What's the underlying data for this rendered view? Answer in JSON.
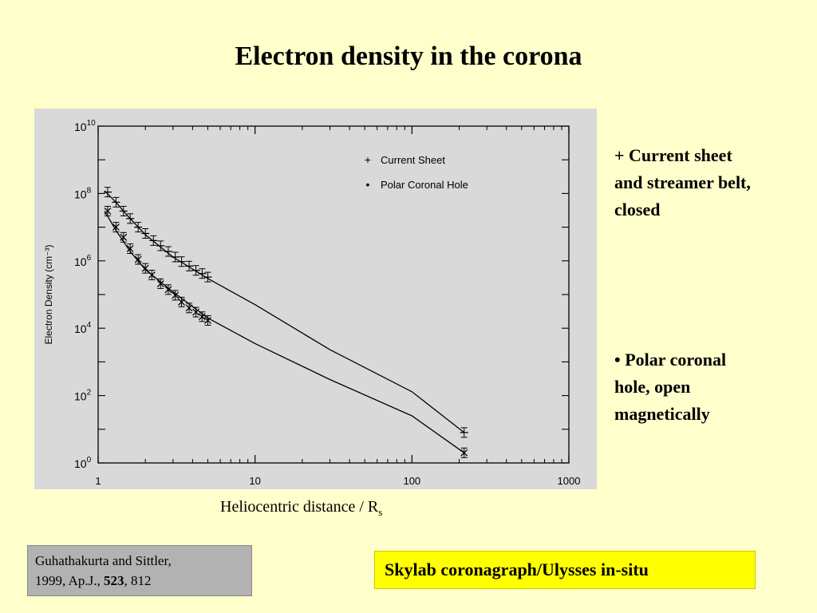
{
  "slide": {
    "title": "Electron density in the corona",
    "notes": [
      "+ Current sheet and streamer belt, closed",
      "• Polar coronal hole, open magnetically"
    ],
    "caption_main": "Heliocentric distance / R",
    "caption_sub": "s",
    "reference": {
      "authors": "Guhathakurta and Sittler,",
      "year_journal": "1999, Ap.J., ",
      "volume": "523",
      "pages": ", 812"
    },
    "skylab_label": "Skylab coronagraph/Ulysses in-situ"
  },
  "chart_data": {
    "type": "line",
    "title": "",
    "xlabel": "",
    "ylabel": "Electron Density (cm⁻³)",
    "xscale": "log",
    "yscale": "log",
    "xlim": [
      1,
      1000
    ],
    "ylim": [
      1,
      10000000000
    ],
    "grid": false,
    "legend_position": "top-right",
    "x_ticks": [
      {
        "value": 1,
        "label": "1"
      },
      {
        "value": 10,
        "label": "10"
      },
      {
        "value": 100,
        "label": "100"
      },
      {
        "value": 1000,
        "label": "1000"
      }
    ],
    "y_ticks": [
      {
        "value": 1,
        "base": "10",
        "exp": "0"
      },
      {
        "value": 100,
        "base": "10",
        "exp": "2"
      },
      {
        "value": 10000,
        "base": "10",
        "exp": "4"
      },
      {
        "value": 1000000,
        "base": "10",
        "exp": "6"
      },
      {
        "value": 100000000,
        "base": "10",
        "exp": "8"
      },
      {
        "value": 10000000000,
        "base": "10",
        "exp": "10"
      }
    ],
    "series": [
      {
        "name": "Current Sheet",
        "marker": "+",
        "curve": [
          [
            1.1,
            120000000
          ],
          [
            1.3,
            55000000
          ],
          [
            1.5,
            25000000
          ],
          [
            2,
            6000000
          ],
          [
            3,
            1300000
          ],
          [
            5,
            300000
          ],
          [
            10,
            50000
          ],
          [
            30,
            2300
          ],
          [
            100,
            130
          ],
          [
            215,
            8
          ]
        ],
        "points": [
          [
            1.15,
            110000000
          ],
          [
            1.3,
            55000000
          ],
          [
            1.45,
            30000000
          ],
          [
            1.6,
            18000000
          ],
          [
            1.8,
            10000000
          ],
          [
            2,
            6500000
          ],
          [
            2.25,
            4000000
          ],
          [
            2.5,
            2800000
          ],
          [
            2.8,
            1900000
          ],
          [
            3.1,
            1300000
          ],
          [
            3.4,
            950000
          ],
          [
            3.8,
            700000
          ],
          [
            4.2,
            520000
          ],
          [
            4.6,
            420000
          ],
          [
            5,
            330000
          ],
          [
            215,
            8
          ]
        ]
      },
      {
        "name": "Polar Coronal Hole",
        "marker": "*",
        "curve": [
          [
            1.1,
            30000000
          ],
          [
            1.3,
            8000000
          ],
          [
            1.6,
            1900000
          ],
          [
            2,
            550000
          ],
          [
            3,
            120000
          ],
          [
            5,
            20000
          ],
          [
            10,
            3500
          ],
          [
            30,
            300
          ],
          [
            100,
            25
          ],
          [
            215,
            2
          ]
        ],
        "points": [
          [
            1.15,
            30000000
          ],
          [
            1.3,
            10000000
          ],
          [
            1.45,
            5000000
          ],
          [
            1.6,
            2300000
          ],
          [
            1.8,
            1100000
          ],
          [
            2,
            600000
          ],
          [
            2.2,
            380000
          ],
          [
            2.5,
            210000
          ],
          [
            2.8,
            140000
          ],
          [
            3.1,
            95000
          ],
          [
            3.4,
            60000
          ],
          [
            3.8,
            40000
          ],
          [
            4.2,
            30000
          ],
          [
            4.6,
            22000
          ],
          [
            5,
            17000
          ],
          [
            215,
            2
          ]
        ]
      }
    ]
  }
}
